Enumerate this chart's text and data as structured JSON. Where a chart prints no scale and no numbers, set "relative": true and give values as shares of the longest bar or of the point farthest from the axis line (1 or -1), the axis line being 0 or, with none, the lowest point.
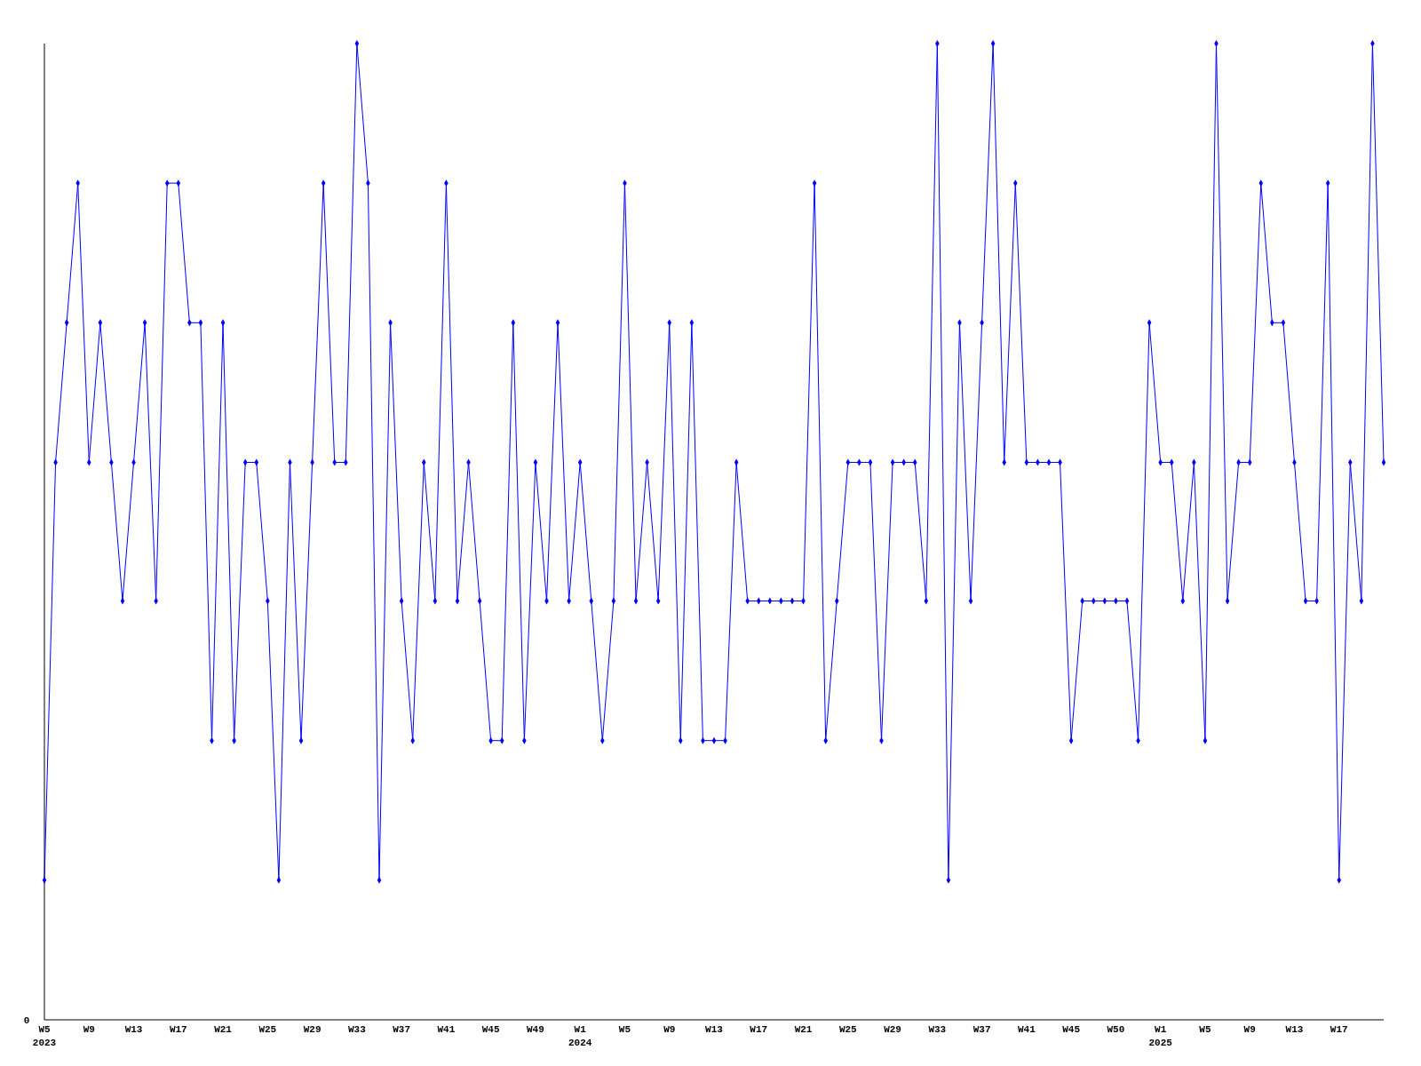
{
  "chart_data": {
    "type": "line",
    "relative": true,
    "marker": "diamond",
    "line_style": "solid",
    "annotations": [
      "0"
    ],
    "categories": [
      "W5\n2023",
      null,
      null,
      null,
      "W9",
      null,
      null,
      null,
      "W13",
      null,
      null,
      null,
      "W17",
      null,
      null,
      null,
      "W21",
      null,
      null,
      null,
      "W25",
      null,
      null,
      null,
      "W29",
      null,
      null,
      null,
      "W33",
      null,
      null,
      null,
      "W37",
      null,
      null,
      null,
      "W41",
      null,
      null,
      null,
      "W45",
      null,
      null,
      null,
      "W49",
      null,
      null,
      null,
      "W1\n2024",
      null,
      null,
      null,
      "W5",
      null,
      null,
      null,
      "W9",
      null,
      null,
      null,
      "W13",
      null,
      null,
      null,
      "W17",
      null,
      null,
      null,
      "W21",
      null,
      null,
      null,
      "W25",
      null,
      null,
      null,
      "W29",
      null,
      null,
      null,
      "W33",
      null,
      null,
      null,
      "W37",
      null,
      null,
      null,
      "W41",
      null,
      null,
      null,
      "W45",
      null,
      null,
      null,
      "W50",
      null,
      null,
      null,
      "W1\n2025",
      null,
      null,
      null,
      "W5",
      null,
      null,
      null,
      "W9",
      null,
      null,
      null,
      "W13",
      null,
      null,
      null,
      "W17",
      null,
      null,
      null,
      null
    ],
    "series": [
      {
        "color": "#0000ff",
        "values": [
          0.143,
          0.571,
          0.714,
          0.857,
          0.571,
          0.714,
          0.571,
          0.429,
          0.571,
          0.714,
          0.429,
          0.857,
          0.857,
          0.714,
          0.714,
          0.286,
          0.714,
          0.286,
          0.571,
          0.571,
          0.429,
          0.143,
          0.571,
          0.286,
          0.571,
          0.857,
          0.571,
          0.571,
          1,
          0.857,
          0.143,
          0.714,
          0.429,
          0.286,
          0.571,
          0.429,
          0.857,
          0.429,
          0.571,
          0.429,
          0.286,
          0.286,
          0.714,
          0.286,
          0.571,
          0.429,
          0.714,
          0.429,
          0.571,
          0.429,
          0.286,
          0.429,
          0.857,
          0.429,
          0.571,
          0.429,
          0.714,
          0.286,
          0.714,
          0.286,
          0.286,
          0.286,
          0.571,
          0.429,
          0.429,
          0.429,
          0.429,
          0.429,
          0.429,
          0.857,
          0.286,
          0.429,
          0.571,
          0.571,
          0.571,
          0.286,
          0.571,
          0.571,
          0.571,
          0.429,
          1,
          0.143,
          0.714,
          0.429,
          0.714,
          1,
          0.571,
          0.857,
          0.571,
          0.571,
          0.571,
          0.571,
          0.286,
          0.429,
          0.429,
          0.429,
          0.429,
          0.429,
          0.286,
          0.714,
          0.571,
          0.571,
          0.429,
          0.571,
          0.286,
          1,
          0.429,
          0.571,
          0.571,
          0.857,
          0.714,
          0.714,
          0.571,
          0.429,
          0.429,
          0.857,
          0.143,
          0.571,
          0.429,
          1,
          0.571
        ]
      }
    ]
  }
}
